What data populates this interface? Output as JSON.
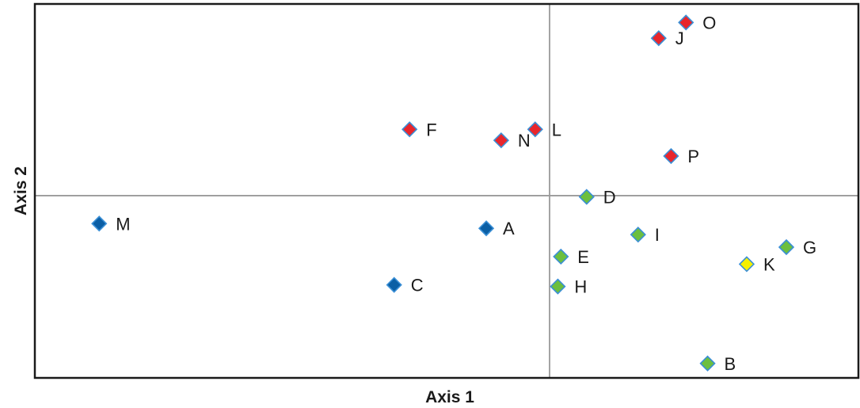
{
  "chart_data": {
    "type": "scatter",
    "xlabel": "Axis 1",
    "ylabel": "Axis 2",
    "xlim": [
      -1.0,
      0.6
    ],
    "ylim": [
      -0.58,
      0.61
    ],
    "grid": false,
    "reference_lines": {
      "x": 0,
      "y": 0
    },
    "colors": {
      "red": "#e8262c",
      "green": "#6cbf3f",
      "blue": "#0b5fa5",
      "yellow": "#f5f000",
      "edge": "#3a8fd6"
    },
    "points": [
      {
        "label": "A",
        "x": -0.123,
        "y": -0.104,
        "color": "blue"
      },
      {
        "label": "B",
        "x": 0.307,
        "y": -0.534,
        "color": "green"
      },
      {
        "label": "C",
        "x": -0.302,
        "y": -0.284,
        "color": "blue"
      },
      {
        "label": "D",
        "x": 0.072,
        "y": -0.004,
        "color": "green"
      },
      {
        "label": "E",
        "x": 0.022,
        "y": -0.194,
        "color": "green"
      },
      {
        "label": "F",
        "x": -0.272,
        "y": 0.211,
        "color": "red"
      },
      {
        "label": "G",
        "x": 0.46,
        "y": -0.164,
        "color": "green"
      },
      {
        "label": "H",
        "x": 0.016,
        "y": -0.289,
        "color": "green"
      },
      {
        "label": "I",
        "x": 0.172,
        "y": -0.124,
        "color": "green"
      },
      {
        "label": "J",
        "x": 0.212,
        "y": 0.501,
        "color": "red"
      },
      {
        "label": "K",
        "x": 0.383,
        "y": -0.218,
        "color": "yellow"
      },
      {
        "label": "L",
        "x": -0.028,
        "y": 0.211,
        "color": "red"
      },
      {
        "label": "M",
        "x": -0.875,
        "y": -0.089,
        "color": "blue"
      },
      {
        "label": "N",
        "x": -0.094,
        "y": 0.176,
        "color": "red"
      },
      {
        "label": "O",
        "x": 0.265,
        "y": 0.551,
        "color": "red"
      },
      {
        "label": "P",
        "x": 0.236,
        "y": 0.126,
        "color": "red"
      }
    ]
  }
}
